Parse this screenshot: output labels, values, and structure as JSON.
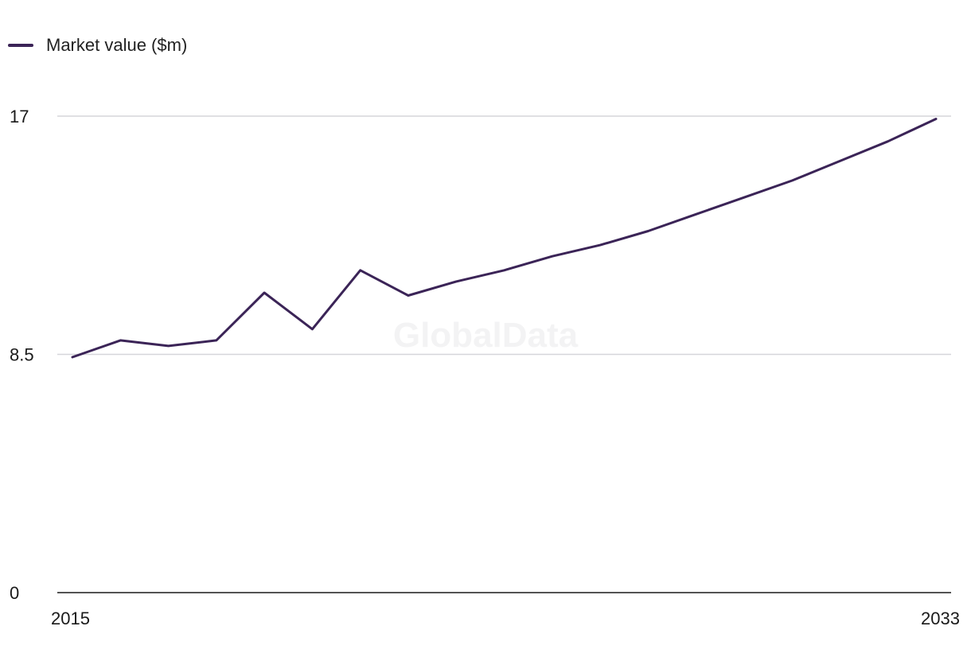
{
  "chart_data": {
    "type": "line",
    "title": "",
    "xlabel": "",
    "ylabel": "",
    "x": [
      2015,
      2016,
      2017,
      2018,
      2019,
      2020,
      2021,
      2022,
      2023,
      2024,
      2025,
      2026,
      2027,
      2028,
      2029,
      2030,
      2031,
      2032,
      2033
    ],
    "series": [
      {
        "name": "Market value ($m)",
        "color": "#3b2457",
        "values": [
          8.4,
          9.0,
          8.8,
          9.0,
          10.7,
          9.4,
          11.5,
          10.6,
          11.1,
          11.5,
          12.0,
          12.4,
          12.9,
          13.5,
          14.1,
          14.7,
          15.4,
          16.1,
          16.9
        ]
      }
    ],
    "ylim": [
      0,
      17
    ],
    "yticks": [
      {
        "value": 0,
        "label": "0"
      },
      {
        "value": 8.5,
        "label": "8.5"
      },
      {
        "value": 17,
        "label": "17"
      }
    ],
    "xticks": [
      {
        "value": 2015,
        "label": "2015"
      },
      {
        "value": 2033,
        "label": "2033"
      }
    ],
    "grid": true,
    "legend": "top-left",
    "watermark": "GlobalData"
  },
  "legend": {
    "label": "Market value ($m)"
  },
  "colors": {
    "line": "#3b2457",
    "grid": "#d6d6da",
    "axis": "#1a1a1a"
  }
}
